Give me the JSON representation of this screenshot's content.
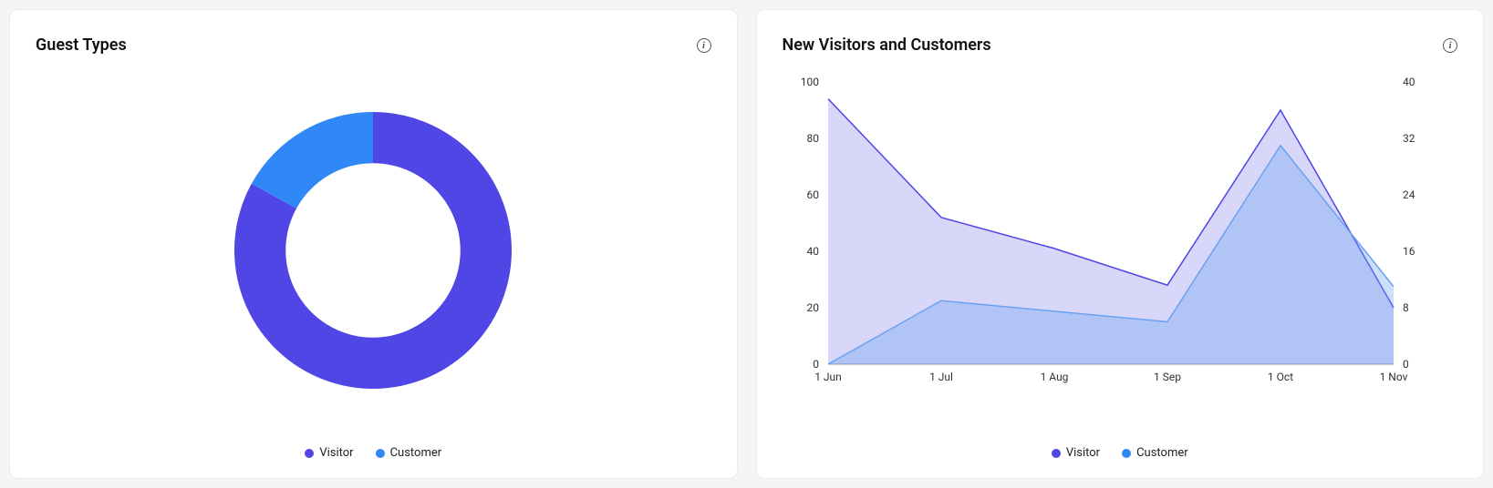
{
  "page_background": "#f5f5f7",
  "card_background": "#ffffff",
  "card_border": "#ececec",
  "guest_types": {
    "title": "Guest Types",
    "type": "donut",
    "slices": [
      {
        "label": "Visitor",
        "value": 83,
        "color": "#4f46e5"
      },
      {
        "label": "Customer",
        "value": 17,
        "color": "#2f88f5"
      }
    ],
    "ring_inner_pct": 63,
    "rotation_start_deg": 0
  },
  "new_visitors": {
    "title": "New Visitors and Customers",
    "type": "area-dual-axis",
    "x_categories": [
      "1 Jun",
      "1 Jul",
      "1 Aug",
      "1 Sep",
      "1 Oct",
      "1 Nov"
    ],
    "left_axis": {
      "min": 0,
      "max": 100,
      "step": 20
    },
    "right_axis": {
      "min": 0,
      "max": 40,
      "step": 8
    },
    "series": [
      {
        "name": "Visitor",
        "axis": "left",
        "values": [
          94,
          52,
          41,
          28,
          90,
          20
        ],
        "stroke": "#4f46e5",
        "fill": "#4f46e5",
        "fill_opacity": 0.22,
        "stroke_width": 1.5
      },
      {
        "name": "Customer",
        "axis": "right",
        "values": [
          0,
          9,
          7.5,
          6,
          31,
          11
        ],
        "stroke": "#6aa2f2",
        "fill": "#6aa2f2",
        "fill_opacity": 0.35,
        "stroke_width": 1.5
      }
    ],
    "axis_label_fontsize": 12,
    "axis_label_color": "#333333",
    "legend_dot_colors": {
      "Visitor": "#4f46e5",
      "Customer": "#2f88f5"
    }
  }
}
